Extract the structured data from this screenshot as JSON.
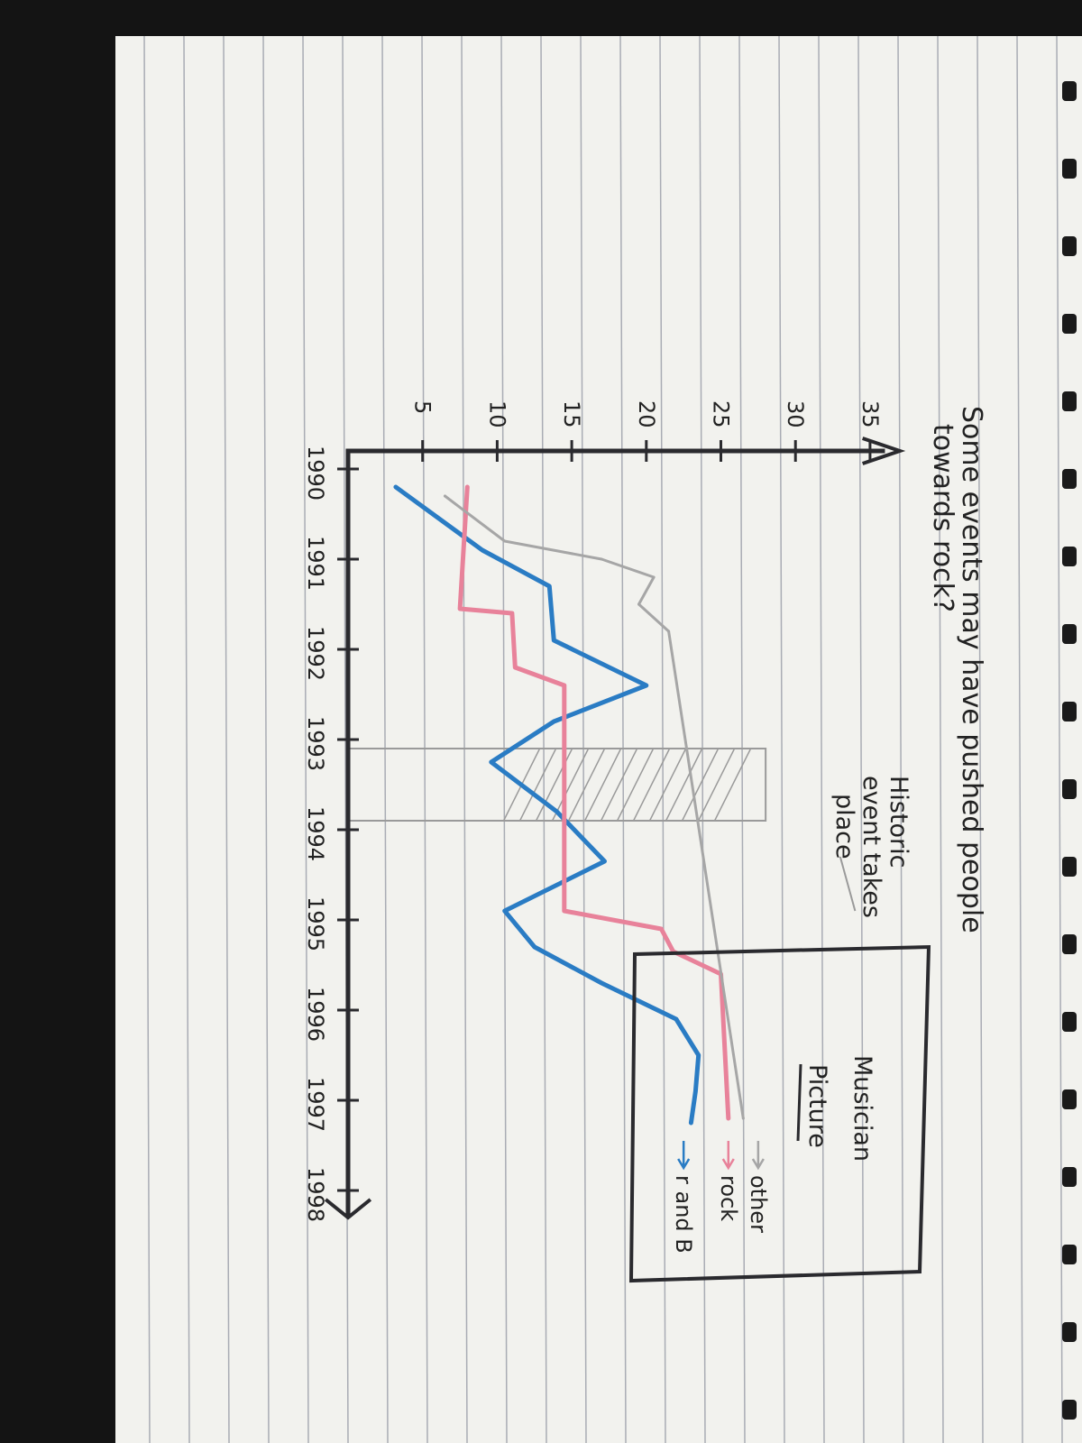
{
  "note": {
    "title_line1": "Some events may have pushed people",
    "title_line2": "towards rock?",
    "annotation_line1": "Historic",
    "annotation_line2": "event takes",
    "annotation_line3": "place",
    "box_line1": "Musician",
    "box_line2": "Picture"
  },
  "colors": {
    "paper": "#f2f2ee",
    "rule_line": "#a9acb4",
    "ink": "#2a2a2e",
    "rnb": "#2a7cc4",
    "rock": "#e8829a",
    "other": "#a6a6a6",
    "hatch": "#9a9a9a"
  },
  "chart_data": {
    "type": "line",
    "title": "Some events may have pushed people towards rock?",
    "x_tick_labels": [
      "1990",
      "1991",
      "1992",
      "1993",
      "1994",
      "1995",
      "1996",
      "1997",
      "1998"
    ],
    "y_tick_labels": [
      "5",
      "10",
      "15",
      "20",
      "25",
      "30",
      "35"
    ],
    "ylim": [
      0,
      37
    ],
    "xlim": [
      1989.8,
      1998.4
    ],
    "highlight": {
      "x_from": 1993.1,
      "x_to": 1993.9,
      "label": "Historic event takes place"
    },
    "series": [
      {
        "name": "r and B",
        "color": "#2a7cc4",
        "points": [
          [
            1990.2,
            3.2
          ],
          [
            1990.9,
            9.0
          ],
          [
            1991.3,
            13.5
          ],
          [
            1991.9,
            13.8
          ],
          [
            1992.4,
            20.0
          ],
          [
            1992.8,
            13.8
          ],
          [
            1993.25,
            9.6
          ],
          [
            1993.8,
            14.0
          ],
          [
            1994.35,
            17.2
          ],
          [
            1994.9,
            10.5
          ],
          [
            1995.3,
            12.5
          ],
          [
            1995.7,
            17.0
          ],
          [
            1996.1,
            22.0
          ],
          [
            1996.5,
            23.5
          ],
          [
            1996.9,
            23.3
          ],
          [
            1997.25,
            23.0
          ]
        ]
      },
      {
        "name": "rock",
        "color": "#e8829a",
        "points": [
          [
            1990.2,
            8.0
          ],
          [
            1991.55,
            7.5
          ],
          [
            1991.6,
            11.0
          ],
          [
            1992.2,
            11.2
          ],
          [
            1992.4,
            14.5
          ],
          [
            1994.9,
            14.5
          ],
          [
            1995.1,
            21.0
          ],
          [
            1995.35,
            21.8
          ],
          [
            1995.6,
            25.0
          ],
          [
            1997.2,
            25.5
          ]
        ]
      },
      {
        "name": "other",
        "color": "#a6a6a6",
        "points": [
          [
            1990.3,
            6.5
          ],
          [
            1990.8,
            10.5
          ],
          [
            1991.0,
            17.0
          ],
          [
            1991.2,
            20.5
          ],
          [
            1991.5,
            19.5
          ],
          [
            1991.8,
            21.5
          ],
          [
            1997.2,
            26.5
          ]
        ]
      }
    ],
    "legend": {
      "position": "right",
      "entries": [
        {
          "label": "r and B",
          "color": "#2a7cc4"
        },
        {
          "label": "rock",
          "color": "#e8829a"
        },
        {
          "label": "other",
          "color": "#a6a6a6"
        }
      ]
    }
  }
}
